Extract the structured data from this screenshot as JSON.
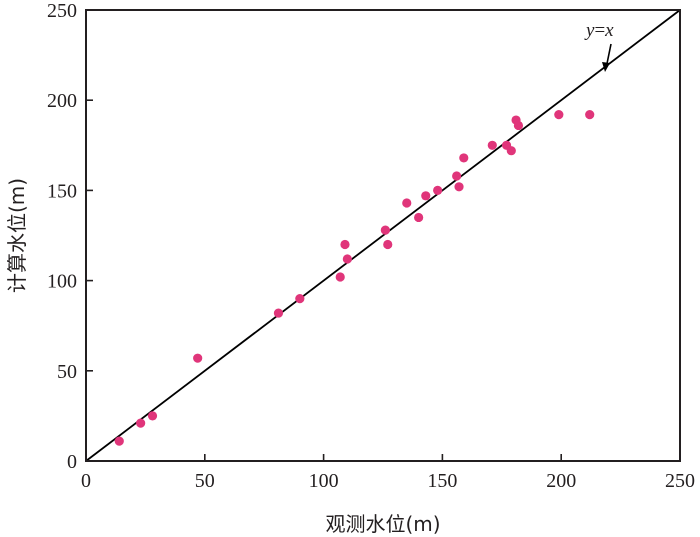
{
  "chart_data": {
    "type": "scatter",
    "title": "",
    "xlabel": "观测水位(m)",
    "ylabel": "计算水位(m)",
    "xlim": [
      0,
      250
    ],
    "ylim": [
      0,
      250
    ],
    "x_ticks": [
      0,
      50,
      100,
      150,
      200,
      250
    ],
    "y_ticks": [
      0,
      50,
      100,
      150,
      200,
      250
    ],
    "grid": false,
    "legend": "none",
    "reference_line": {
      "label": "y=x",
      "label_prefix": "y",
      "label_eq": "=",
      "label_suffix": "x",
      "from": [
        0,
        0
      ],
      "to": [
        250,
        250
      ]
    },
    "colors": {
      "points": "#e0357a",
      "line": "#000000",
      "axis": "#231f20"
    },
    "series": [
      {
        "points": [
          [
            14,
            11
          ],
          [
            23,
            21
          ],
          [
            28,
            25
          ],
          [
            47,
            57
          ],
          [
            81,
            82
          ],
          [
            90,
            90
          ],
          [
            107,
            102
          ],
          [
            109,
            120
          ],
          [
            110,
            112
          ],
          [
            126,
            128
          ],
          [
            127,
            120
          ],
          [
            135,
            143
          ],
          [
            140,
            135
          ],
          [
            143,
            147
          ],
          [
            148,
            150
          ],
          [
            156,
            158
          ],
          [
            157,
            152
          ],
          [
            159,
            168
          ],
          [
            171,
            175
          ],
          [
            177,
            175
          ],
          [
            179,
            172
          ],
          [
            181,
            189
          ],
          [
            182,
            186
          ],
          [
            199,
            192
          ],
          [
            212,
            192
          ]
        ]
      }
    ]
  }
}
